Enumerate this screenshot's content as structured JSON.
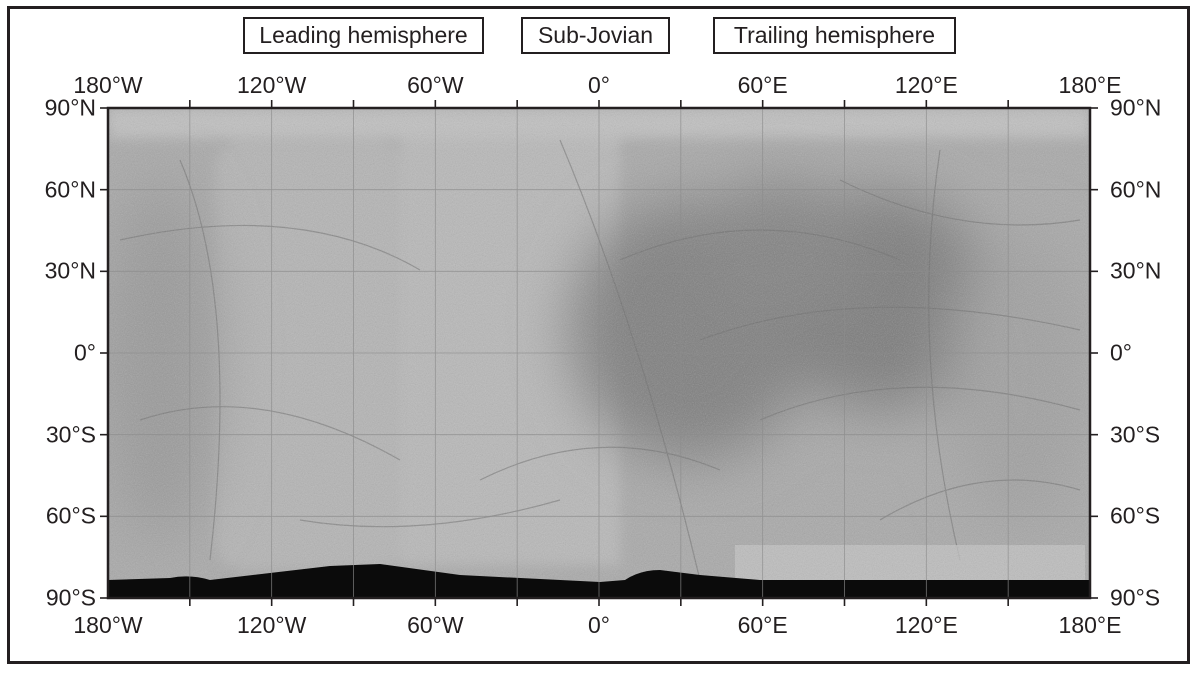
{
  "labels": {
    "leading": "Leading hemisphere",
    "subjovian": "Sub-Jovian",
    "trailing": "Trailing hemisphere"
  },
  "longitude_ticks": [
    {
      "lon": -180,
      "label": "180°W"
    },
    {
      "lon": -120,
      "label": "120°W"
    },
    {
      "lon": -60,
      "label": "60°W"
    },
    {
      "lon": 0,
      "label": "0°"
    },
    {
      "lon": 60,
      "label": "60°E"
    },
    {
      "lon": 120,
      "label": "120°E"
    },
    {
      "lon": 180,
      "label": "180°E"
    }
  ],
  "latitude_ticks": [
    {
      "lat": 90,
      "label": "90°N"
    },
    {
      "lat": 60,
      "label": "60°N"
    },
    {
      "lat": 30,
      "label": "30°N"
    },
    {
      "lat": 0,
      "label": "0°"
    },
    {
      "lat": -30,
      "label": "30°S"
    },
    {
      "lat": -60,
      "label": "60°S"
    },
    {
      "lat": -90,
      "label": "90°S"
    }
  ],
  "colors": {
    "ink": "#231f20",
    "surface_base": "#a9a9a9",
    "no_data": "#0b0b0b"
  }
}
